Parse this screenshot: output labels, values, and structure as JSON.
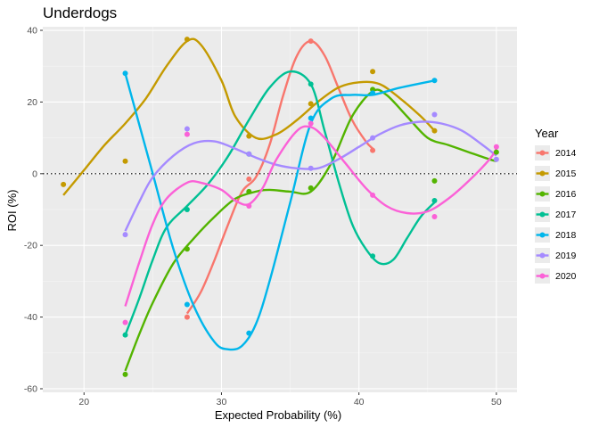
{
  "chart_data": {
    "type": "scatter",
    "title": "Underdogs",
    "xlabel": "Expected Probability (%)",
    "ylabel": "ROI (%)",
    "xlim": [
      17,
      51.5
    ],
    "ylim": [
      -61,
      41
    ],
    "x_ticks": [
      20,
      30,
      40,
      50
    ],
    "y_ticks": [
      -60,
      -40,
      -20,
      0,
      20,
      40
    ],
    "grid": true,
    "reference_line": {
      "y": 0,
      "style": "dotted"
    },
    "smoothed_lines": true,
    "legend": {
      "title": "Year",
      "placement": "right"
    },
    "series": [
      {
        "name": "2014",
        "color": "#F8766D",
        "x": [
          27.5,
          32,
          36.5,
          41
        ],
        "y": [
          -40,
          -1.5,
          37,
          6.5
        ]
      },
      {
        "name": "2015",
        "color": "#C49A00",
        "x": [
          18.5,
          23,
          27.5,
          32,
          36.5,
          41,
          45.5
        ],
        "y": [
          -3,
          3.5,
          37.5,
          10.5,
          19.5,
          28.5,
          12
        ]
      },
      {
        "name": "2016",
        "color": "#53B400",
        "x": [
          23,
          27.5,
          32,
          36.5,
          41,
          45.5,
          50
        ],
        "y": [
          -56,
          -21,
          -5,
          -4,
          23.5,
          -2,
          6
        ]
      },
      {
        "name": "2017",
        "color": "#00C094",
        "x": [
          23,
          27.5,
          32,
          36.5,
          41,
          45.5
        ],
        "y": [
          -45,
          -10,
          5.5,
          25,
          -23,
          -7.5
        ]
      },
      {
        "name": "2018",
        "color": "#00B6EB",
        "x": [
          23,
          27.5,
          32,
          36.5,
          41,
          45.5
        ],
        "y": [
          28,
          -36.5,
          -44.5,
          15.5,
          22.5,
          26
        ]
      },
      {
        "name": "2019",
        "color": "#A58AFF",
        "x": [
          23,
          27.5,
          32,
          36.5,
          41,
          45.5,
          50
        ],
        "y": [
          -17,
          12.5,
          5.5,
          1.5,
          10,
          16.5,
          4
        ]
      },
      {
        "name": "2020",
        "color": "#FB61D7",
        "x": [
          23,
          27.5,
          32,
          36.5,
          41,
          45.5,
          50
        ],
        "y": [
          -41.5,
          11,
          -9,
          14,
          -6,
          -12,
          7.5
        ]
      }
    ],
    "smooth_curves": [
      {
        "name": "2014",
        "x": [
          27.5,
          28.5,
          29.5,
          30.5,
          31.5,
          32.5,
          33.5,
          34.5,
          35.5,
          36.5,
          37.5,
          38.5,
          39.5,
          40.5,
          41
        ],
        "y": [
          -39,
          -33,
          -24,
          -14,
          -5,
          -1,
          8,
          22,
          33,
          37,
          33,
          24,
          15,
          9,
          7
        ]
      },
      {
        "name": "2015",
        "x": [
          18.5,
          20,
          21.5,
          23,
          24.5,
          26,
          27.5,
          28.5,
          30,
          31,
          32.5,
          34,
          35.5,
          37,
          38.5,
          40,
          41.5,
          43,
          44.5,
          45.5
        ],
        "y": [
          -6,
          1,
          8,
          14,
          21,
          30,
          37,
          36,
          26,
          16,
          10,
          11,
          15,
          20,
          24,
          25.5,
          25,
          21,
          16,
          12
        ]
      },
      {
        "name": "2016",
        "x": [
          23,
          24,
          25,
          26.5,
          28,
          29.5,
          31,
          32.5,
          33.5,
          35,
          36.5,
          38,
          39.5,
          41,
          42,
          43.5,
          45,
          46.5,
          48,
          49.5,
          50
        ],
        "y": [
          -55,
          -45,
          -36,
          -25,
          -18,
          -12,
          -7,
          -5,
          -4.5,
          -5,
          -5,
          3,
          16,
          23,
          22,
          16,
          10,
          8,
          6,
          4,
          3.5
        ]
      },
      {
        "name": "2017",
        "x": [
          23,
          24,
          25,
          26,
          27.5,
          29,
          30.5,
          32,
          33.5,
          35,
          36.5,
          37.5,
          38.5,
          39.5,
          40.5,
          41.5,
          42.5,
          43.5,
          44.5,
          45.5
        ],
        "y": [
          -45,
          -35,
          -24,
          -15,
          -9,
          -3,
          5,
          15,
          24,
          28.5,
          25,
          12,
          -2,
          -14,
          -21,
          -25,
          -24,
          -18,
          -12,
          -8
        ]
      },
      {
        "name": "2018",
        "x": [
          23,
          24,
          25,
          26.5,
          28,
          29.5,
          30.5,
          31.5,
          32.5,
          33.5,
          35,
          36.5,
          38,
          39.5,
          41,
          43,
          45.5
        ],
        "y": [
          28,
          14,
          0,
          -21,
          -37,
          -47,
          -49,
          -48,
          -42,
          -30,
          -8,
          14,
          21,
          22,
          22,
          24,
          26
        ]
      },
      {
        "name": "2019",
        "x": [
          23,
          24,
          25,
          26.5,
          28,
          29.5,
          31,
          32.5,
          34,
          35.5,
          37,
          38.5,
          40,
          41.5,
          43,
          44.5,
          46,
          47.5,
          49,
          50
        ],
        "y": [
          -16,
          -8,
          -1,
          5,
          8.5,
          9,
          7,
          4.5,
          2.5,
          1.5,
          1.5,
          4,
          7.5,
          11,
          13.5,
          14.5,
          14,
          12,
          8,
          5
        ]
      },
      {
        "name": "2020",
        "x": [
          23,
          24,
          25,
          26,
          27.5,
          28.5,
          30,
          31,
          32,
          33,
          34,
          35.5,
          36.5,
          37.5,
          39,
          40.5,
          42,
          43.5,
          45,
          46.5,
          48,
          49.5,
          50
        ],
        "y": [
          -37,
          -25,
          -14,
          -7,
          -2.5,
          -2.5,
          -4.5,
          -7.5,
          -8.5,
          -4,
          4,
          12,
          13,
          10,
          3,
          -4,
          -9,
          -11,
          -10.5,
          -7,
          -2,
          4,
          7
        ]
      }
    ]
  }
}
